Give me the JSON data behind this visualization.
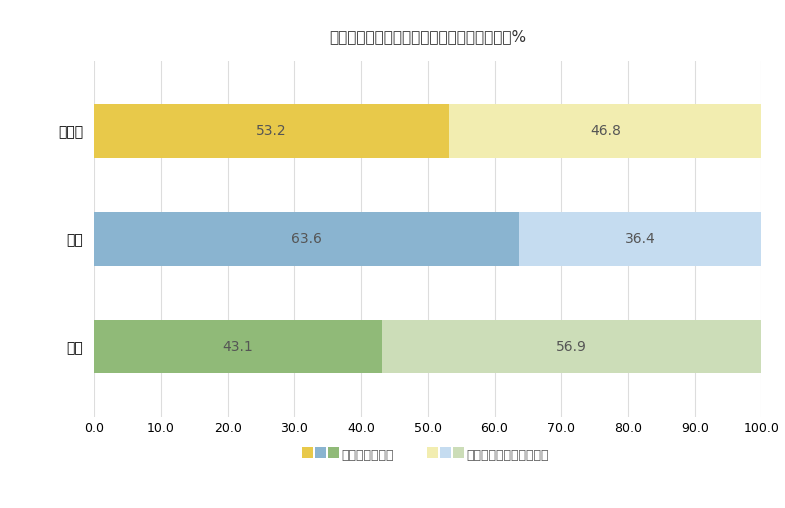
{
  "title": "スポーツファン（全国、男女割合）　単位：%",
  "categories": [
    "男女計",
    "男性",
    "女性"
  ],
  "fan_values": [
    53.2,
    63.6,
    43.1
  ],
  "non_fan_values": [
    46.8,
    36.4,
    56.9
  ],
  "fan_colors": [
    "#E8C94A",
    "#8AB4D0",
    "#90BA78"
  ],
  "fan_light_colors": [
    "#F2EDB0",
    "#C5DCF0",
    "#CCDDB8"
  ],
  "legend_fan_colors": [
    "#E8C94A",
    "#8AB4D0",
    "#90BA78"
  ],
  "legend_non_fan_colors": [
    "#F2EDB0",
    "#C5DCF0",
    "#CCDDB8"
  ],
  "xlim": [
    0,
    100
  ],
  "xticks": [
    0.0,
    10.0,
    20.0,
    30.0,
    40.0,
    50.0,
    60.0,
    70.0,
    80.0,
    90.0,
    100.0
  ],
  "bar_height": 0.5,
  "legend_fan": "スポーツファン",
  "legend_non_fan": "スポーツファンではない",
  "title_fontsize": 11,
  "label_fontsize": 10,
  "tick_fontsize": 9,
  "value_fontsize": 10,
  "background_color": "#FFFFFF",
  "grid_color": "#DDDDDD",
  "text_color": "#555555"
}
